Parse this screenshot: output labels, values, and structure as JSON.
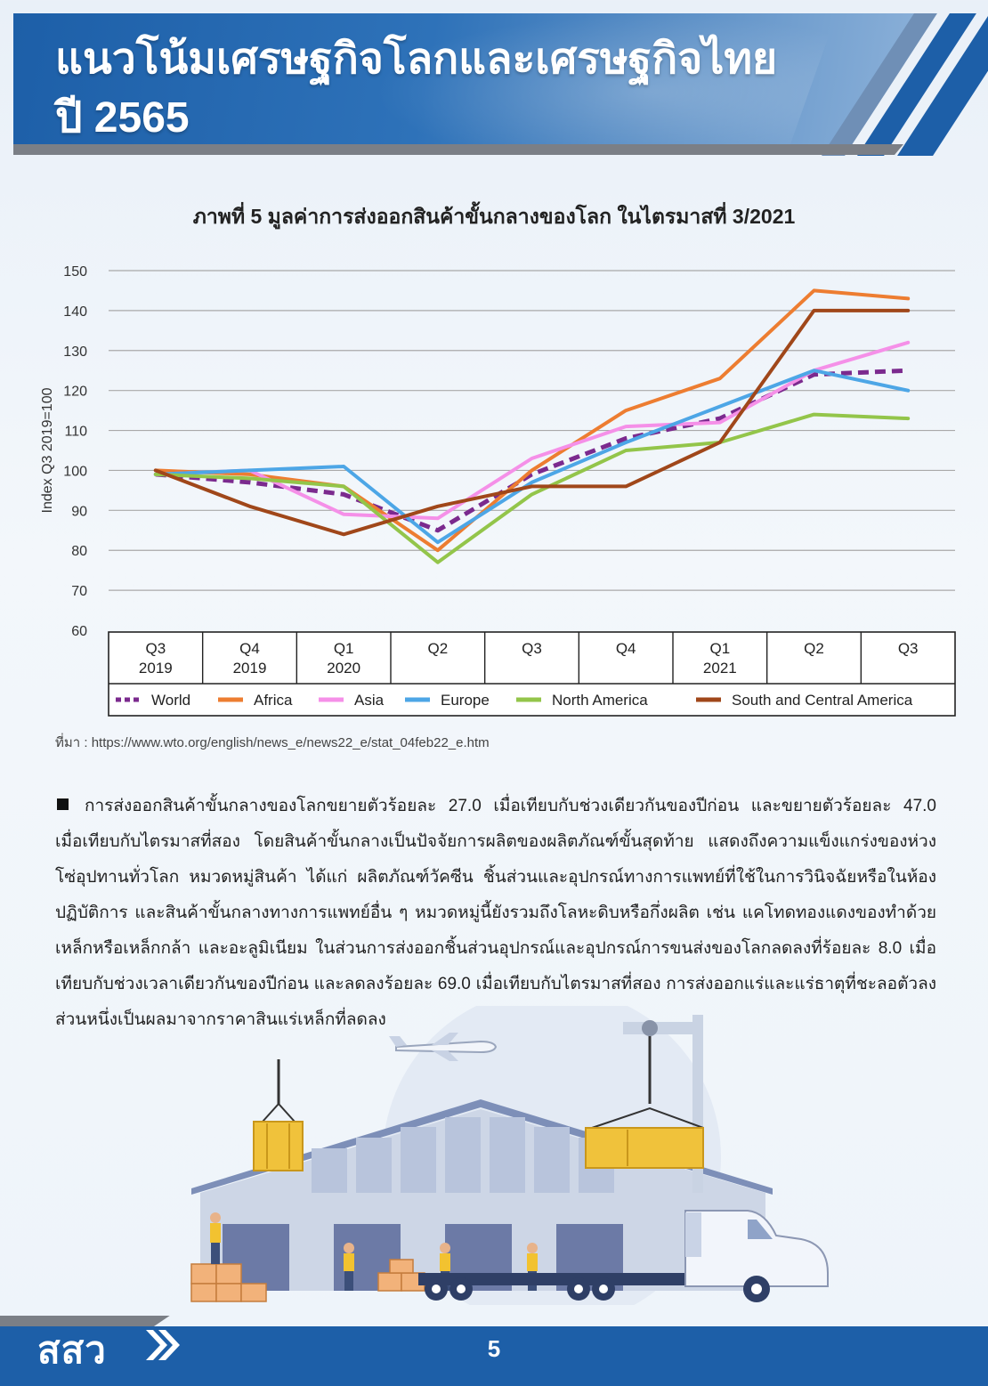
{
  "header": {
    "title_line1": "แนวโน้มเศรษฐกิจโลกและเศรษฐกิจไทย",
    "title_line2": "ปี 2565"
  },
  "chart_title": "ภาพที่ 5 มูลค่าการส่งออกสินค้าขั้นกลางของโลก ในไตรมาสที่ 3/2021",
  "chart_data": {
    "type": "line",
    "ylabel": "Index Q3 2019=100",
    "ylim": [
      60,
      150
    ],
    "yticks": [
      60,
      70,
      80,
      90,
      100,
      110,
      120,
      130,
      140,
      150
    ],
    "grid": true,
    "legend_position": "bottom",
    "categories": [
      {
        "line1": "Q3",
        "line2": "2019"
      },
      {
        "line1": "Q4",
        "line2": "2019"
      },
      {
        "line1": "Q1",
        "line2": "2020"
      },
      {
        "line1": "Q2",
        "line2": ""
      },
      {
        "line1": "Q3",
        "line2": ""
      },
      {
        "line1": "Q4",
        "line2": ""
      },
      {
        "line1": "Q1",
        "line2": "2021"
      },
      {
        "line1": "Q2",
        "line2": ""
      },
      {
        "line1": "Q3",
        "line2": ""
      }
    ],
    "series": [
      {
        "name": "World",
        "color": "#7b2a8e",
        "dashed": true,
        "values": [
          99,
          97,
          94,
          85,
          99,
          108,
          113,
          124,
          125
        ]
      },
      {
        "name": "Africa",
        "color": "#ed7d31",
        "dashed": false,
        "values": [
          100,
          99,
          96,
          80,
          100,
          115,
          123,
          145,
          143
        ]
      },
      {
        "name": "Asia",
        "color": "#f590e8",
        "dashed": false,
        "values": [
          99,
          100,
          89,
          88,
          103,
          111,
          112,
          125,
          132
        ]
      },
      {
        "name": "Europe",
        "color": "#4da6e6",
        "dashed": false,
        "values": [
          99,
          100,
          101,
          82,
          97,
          107,
          116,
          125,
          120
        ]
      },
      {
        "name": "North America",
        "color": "#93c54a",
        "dashed": false,
        "values": [
          99,
          98,
          96,
          77,
          94,
          105,
          107,
          114,
          113
        ]
      },
      {
        "name": "South and Central America",
        "color": "#a0471a",
        "dashed": false,
        "values": [
          100,
          91,
          84,
          91,
          96,
          96,
          107,
          140,
          140
        ]
      }
    ]
  },
  "source": "ที่มา : https://www.wto.org/english/news_e/news22_e/stat_04feb22_e.htm",
  "body_text": "การส่งออกสินค้าขั้นกลางของโลกขยายตัวร้อยละ 27.0 เมื่อเทียบกับช่วงเดียวกันของปีก่อน และขยายตัวร้อยละ 47.0 เมื่อเทียบกับไตรมาสที่สอง โดยสินค้าขั้นกลางเป็นปัจจัยการผลิตของผลิตภัณฑ์ขั้นสุดท้าย แสดงถึงความแข็งแกร่งของห่วงโซ่อุปทานทั่วโลก หมวดหมู่สินค้า ได้แก่ ผลิตภัณฑ์วัคซีน ชิ้นส่วนและอุปกรณ์ทางการแพทย์ที่ใช้ในการวินิจฉัยหรือในห้องปฏิบัติการ และสินค้าขั้นกลางทางการแพทย์อื่น ๆ หมวดหมู่นี้ยังรวมถึงโลหะดิบหรือกึ่งผลิต เช่น แคโทดทองแดงของทำด้วยเหล็กหรือเหล็กกล้า และอะลูมิเนียม ในส่วนการส่งออกชิ้นส่วนอุปกรณ์และอุปกรณ์การขนส่งของโลกลดลงที่ร้อยละ 8.0 เมื่อเทียบกับช่วงเวลาเดียวกันของปีก่อน และลดลงร้อยละ 69.0 เมื่อเทียบกับไตรมาสที่สอง การส่งออกแร่และแร่ธาตุที่ชะลอตัวลงส่วนหนึ่งเป็นผลมาจากราคาสินแร่เหล็กที่ลดลง",
  "footer": {
    "logo_text": "สสว",
    "page_number": "5"
  },
  "colors": {
    "brand_blue": "#1d5fa8",
    "footer_gray": "#7b7f86"
  }
}
